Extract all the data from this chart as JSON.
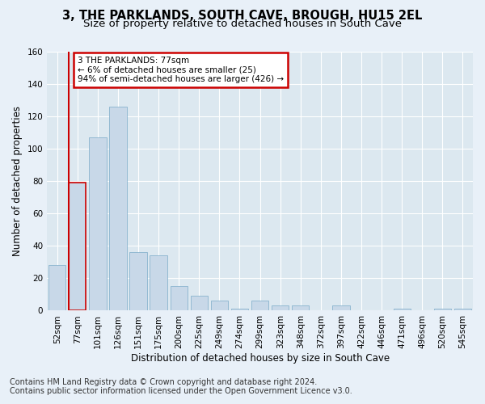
{
  "title": "3, THE PARKLANDS, SOUTH CAVE, BROUGH, HU15 2EL",
  "subtitle": "Size of property relative to detached houses in South Cave",
  "xlabel": "Distribution of detached houses by size in South Cave",
  "ylabel": "Number of detached properties",
  "footer_line1": "Contains HM Land Registry data © Crown copyright and database right 2024.",
  "footer_line2": "Contains public sector information licensed under the Open Government Licence v3.0.",
  "bar_labels": [
    "52sqm",
    "77sqm",
    "101sqm",
    "126sqm",
    "151sqm",
    "175sqm",
    "200sqm",
    "225sqm",
    "249sqm",
    "274sqm",
    "299sqm",
    "323sqm",
    "348sqm",
    "372sqm",
    "397sqm",
    "422sqm",
    "446sqm",
    "471sqm",
    "496sqm",
    "520sqm",
    "545sqm"
  ],
  "bar_values": [
    28,
    79,
    107,
    126,
    36,
    34,
    15,
    9,
    6,
    1,
    6,
    3,
    3,
    0,
    3,
    0,
    0,
    1,
    0,
    1,
    1
  ],
  "bar_color": "#c8d8e8",
  "bar_edge_color": "#7aaac8",
  "highlight_bar_index": 1,
  "highlight_edge_color": "#cc0000",
  "annotation_text": "3 THE PARKLANDS: 77sqm\n← 6% of detached houses are smaller (25)\n94% of semi-detached houses are larger (426) →",
  "annotation_box_color": "#ffffff",
  "annotation_box_edge_color": "#cc0000",
  "ylim": [
    0,
    160
  ],
  "yticks": [
    0,
    20,
    40,
    60,
    80,
    100,
    120,
    140,
    160
  ],
  "bg_color": "#dce8f0",
  "fig_bg_color": "#e8f0f8",
  "grid_color": "#ffffff",
  "title_fontsize": 10.5,
  "subtitle_fontsize": 9.5,
  "axis_label_fontsize": 8.5,
  "tick_fontsize": 7.5,
  "footer_fontsize": 7.0
}
